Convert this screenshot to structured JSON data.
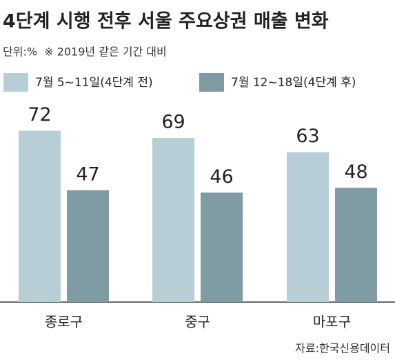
{
  "chart_data": {
    "type": "bar",
    "title": "4단계 시행 전후 서울 주요상권 매출 변화",
    "subtitle": "단위:%  ※ 2019년 같은 기간 대비",
    "categories": [
      "종로구",
      "중구",
      "마포구"
    ],
    "series": [
      {
        "name": "7월 5~11일(4단계 전)",
        "color": "#b7ced7",
        "values": [
          72,
          69,
          63
        ]
      },
      {
        "name": "7월 12~18일(4단계 후)",
        "color": "#7f9ba4",
        "values": [
          47,
          46,
          48
        ]
      }
    ],
    "ylim": [
      0,
      80
    ],
    "source": "자료:한국신용데이터"
  }
}
